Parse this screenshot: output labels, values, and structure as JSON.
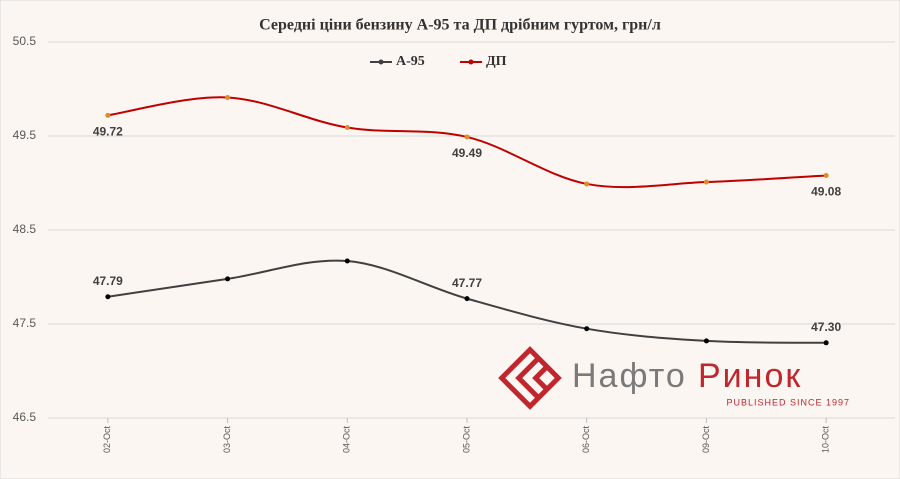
{
  "chart_data": {
    "type": "line",
    "title": "Середні ціни бензину А-95 та ДП дрібним гуртом, грн/л",
    "categories": [
      "02-Oct",
      "03-Oct",
      "04-Oct",
      "05-Oct",
      "06-Oct",
      "09-Oct",
      "10-Oct"
    ],
    "series": [
      {
        "name": "А-95",
        "color": "#404040",
        "values": [
          47.79,
          47.98,
          48.17,
          47.77,
          47.45,
          47.32,
          47.3
        ],
        "value_labels": [
          "47.79",
          null,
          null,
          "47.77",
          null,
          null,
          "47.30"
        ]
      },
      {
        "name": "ДП",
        "color": "#c00000",
        "values": [
          49.72,
          49.91,
          49.59,
          49.49,
          48.99,
          49.01,
          49.08
        ],
        "value_labels": [
          "49.72",
          null,
          null,
          "49.49",
          null,
          null,
          "49.08"
        ]
      }
    ],
    "ylim": [
      46.5,
      50.5
    ],
    "yticks": [
      46.5,
      47.5,
      48.5,
      49.5,
      50.5
    ],
    "grid": true,
    "smooth": true,
    "legend": "top"
  },
  "logo": {
    "name_start": "Нафто",
    "name_end": "Ринок",
    "tagline": "PUBLISHED SINCE 1997"
  }
}
